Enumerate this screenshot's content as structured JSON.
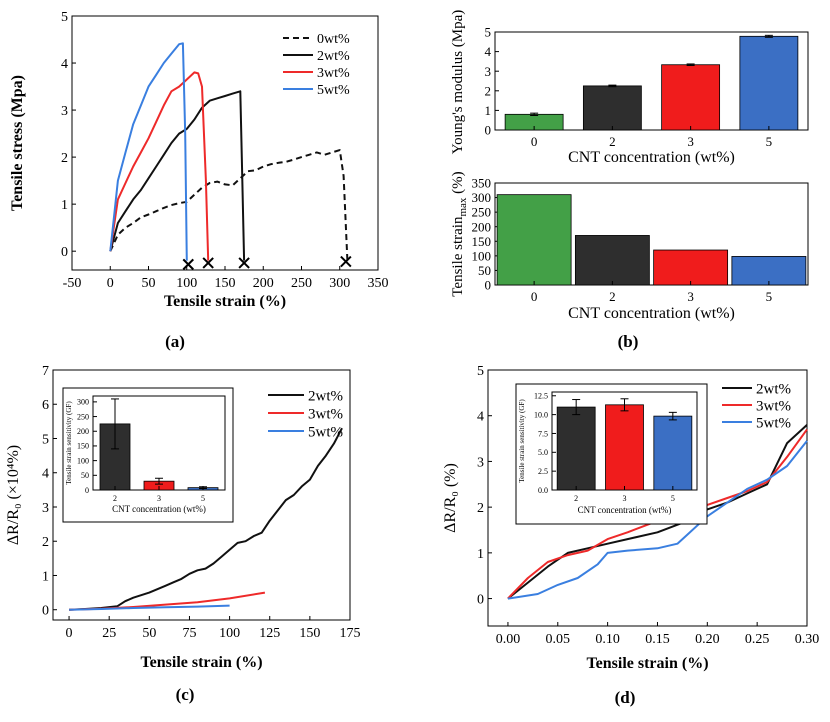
{
  "panels": [
    "(a)",
    "(b)",
    "(c)",
    "(d)"
  ],
  "colors": {
    "black": "#1a1a1a",
    "red": "#ee2a2a",
    "blue": "#3a7fe0",
    "green": "#43a047",
    "darkbar": "#2e2e2e",
    "redbar": "#f01c1c",
    "bluebar": "#3b6fc4"
  },
  "chart_data": [
    {
      "panel": "(a)",
      "type": "line",
      "xlabel": "Tensile strain (%)",
      "ylabel": "Tensile stress (Mpa)",
      "xlim": [
        -50,
        350
      ],
      "ylim": [
        -0.4,
        5
      ],
      "xticks": [
        -50,
        0,
        50,
        100,
        150,
        200,
        250,
        300,
        350
      ],
      "yticks": [
        0,
        1,
        2,
        3,
        4,
        5
      ],
      "legend": "top-right",
      "series": [
        {
          "name": "0wt%",
          "color": "#111111",
          "dash": "6,4",
          "x": [
            0,
            10,
            20,
            30,
            40,
            50,
            60,
            70,
            80,
            90,
            100,
            110,
            120,
            130,
            140,
            150,
            160,
            170,
            180,
            190,
            200,
            210,
            220,
            230,
            240,
            250,
            260,
            270,
            280,
            290,
            300,
            305,
            310
          ],
          "y": [
            0,
            0.35,
            0.5,
            0.6,
            0.72,
            0.78,
            0.85,
            0.92,
            0.98,
            1.02,
            1.05,
            1.2,
            1.35,
            1.45,
            1.48,
            1.42,
            1.4,
            1.55,
            1.7,
            1.72,
            1.8,
            1.85,
            1.88,
            1.9,
            1.95,
            2.0,
            2.05,
            2.1,
            2.05,
            2.1,
            2.15,
            1.6,
            -0.2
          ],
          "fracture": [
            308,
            -0.22
          ]
        },
        {
          "name": "2wt%",
          "color": "#111111",
          "dash": "",
          "x": [
            0,
            10,
            20,
            30,
            40,
            50,
            60,
            70,
            80,
            90,
            100,
            110,
            120,
            130,
            140,
            150,
            160,
            170,
            172,
            175
          ],
          "y": [
            0,
            0.6,
            0.85,
            1.1,
            1.3,
            1.55,
            1.8,
            2.05,
            2.3,
            2.5,
            2.6,
            2.8,
            3.05,
            3.2,
            3.25,
            3.3,
            3.35,
            3.4,
            2.0,
            -0.2
          ],
          "fracture": [
            175,
            -0.25
          ]
        },
        {
          "name": "3wt%",
          "color": "#ee2a2a",
          "dash": "",
          "x": [
            0,
            10,
            20,
            30,
            40,
            50,
            60,
            70,
            80,
            90,
            100,
            110,
            115,
            120,
            125,
            128
          ],
          "y": [
            0,
            1.1,
            1.45,
            1.8,
            2.1,
            2.4,
            2.75,
            3.1,
            3.4,
            3.5,
            3.65,
            3.8,
            3.78,
            3.5,
            1.5,
            -0.2
          ],
          "fracture": [
            128,
            -0.25
          ]
        },
        {
          "name": "5wt%",
          "color": "#3a7fe0",
          "dash": "",
          "x": [
            0,
            10,
            20,
            30,
            40,
            50,
            60,
            70,
            80,
            90,
            95,
            98,
            100
          ],
          "y": [
            0,
            1.5,
            2.1,
            2.7,
            3.1,
            3.5,
            3.75,
            4.0,
            4.2,
            4.4,
            4.42,
            2.5,
            -0.2
          ],
          "fracture": [
            102,
            -0.28
          ]
        }
      ]
    },
    {
      "panel": "(b) top",
      "type": "bar",
      "xlabel": "CNT concentration (wt%)",
      "ylabel": "Young's modulus (Mpa)",
      "ylim": [
        0,
        5
      ],
      "yticks": [
        0,
        1,
        2,
        3,
        4,
        5
      ],
      "categories": [
        "0",
        "2",
        "3",
        "5"
      ],
      "values": [
        0.8,
        2.25,
        3.33,
        4.78
      ],
      "errors": [
        0.06,
        0.04,
        0.04,
        0.05
      ],
      "colors": [
        "#43a047",
        "#2e2e2e",
        "#f01c1c",
        "#3b6fc4"
      ]
    },
    {
      "panel": "(b) bottom",
      "type": "bar",
      "xlabel": "CNT concentration (wt%)",
      "ylabel_main": "Tensile strain",
      "ylabel_sub": "max",
      "ylabel_unit": " (%)",
      "ylim": [
        0,
        350
      ],
      "yticks": [
        0,
        50,
        100,
        150,
        200,
        250,
        300,
        350
      ],
      "categories": [
        "0",
        "2",
        "3",
        "5"
      ],
      "values": [
        310,
        170,
        120,
        98
      ],
      "colors": [
        "#43a047",
        "#2e2e2e",
        "#f01c1c",
        "#3b6fc4"
      ]
    },
    {
      "panel": "(c)",
      "type": "line",
      "xlabel": "Tensile strain (%)",
      "ylabel": "ΔR/R₀ (×10⁴%)",
      "xlim": [
        -10,
        175
      ],
      "ylim": [
        -0.3,
        7
      ],
      "xticks": [
        0,
        25,
        50,
        75,
        100,
        125,
        150,
        175
      ],
      "yticks": [
        0,
        1,
        2,
        3,
        4,
        5,
        6,
        7
      ],
      "legend": "top-right",
      "series": [
        {
          "name": "2wt%",
          "color": "#111111",
          "x": [
            0,
            10,
            20,
            30,
            35,
            40,
            50,
            60,
            65,
            70,
            75,
            80,
            85,
            90,
            95,
            100,
            105,
            110,
            115,
            120,
            125,
            130,
            135,
            140,
            145,
            150,
            155,
            160,
            165,
            170
          ],
          "y": [
            0,
            0.02,
            0.05,
            0.1,
            0.25,
            0.35,
            0.5,
            0.7,
            0.8,
            0.9,
            1.05,
            1.15,
            1.2,
            1.35,
            1.55,
            1.75,
            1.95,
            2.0,
            2.15,
            2.25,
            2.6,
            2.9,
            3.2,
            3.35,
            3.6,
            3.8,
            4.2,
            4.5,
            4.85,
            5.3
          ]
        },
        {
          "name": "3wt%",
          "color": "#ee2a2a",
          "x": [
            0,
            20,
            40,
            60,
            80,
            100,
            122
          ],
          "y": [
            0,
            0.03,
            0.08,
            0.15,
            0.22,
            0.33,
            0.5
          ]
        },
        {
          "name": "5wt%",
          "color": "#3a7fe0",
          "x": [
            0,
            20,
            40,
            60,
            80,
            100
          ],
          "y": [
            0,
            0.02,
            0.05,
            0.07,
            0.09,
            0.12
          ]
        }
      ],
      "inset": {
        "type": "bar",
        "xlabel": "CNT concentration (wt%)",
        "ylabel": "Tensile strain sensitivity (GF)",
        "ylim": [
          0,
          320
        ],
        "yticks": [
          0,
          50,
          100,
          150,
          200,
          250,
          300
        ],
        "categories": [
          "2",
          "3",
          "5"
        ],
        "values": [
          225,
          30,
          8
        ],
        "errors": [
          85,
          10,
          3
        ],
        "colors": [
          "#2e2e2e",
          "#f01c1c",
          "#3b6fc4"
        ]
      }
    },
    {
      "panel": "(d)",
      "type": "line",
      "xlabel": "Tensile strain (%)",
      "ylabel": "ΔR/R₀ (%)",
      "xlim": [
        -0.02,
        0.3
      ],
      "ylim": [
        -0.6,
        5
      ],
      "xticks": [
        0.0,
        0.05,
        0.1,
        0.15,
        0.2,
        0.25,
        0.3
      ],
      "xtick_labels": [
        "0.00",
        "0.05",
        "0.10",
        "0.15",
        "0.20",
        "0.25",
        "0.30"
      ],
      "yticks": [
        0,
        1,
        2,
        3,
        4,
        5
      ],
      "legend": "top-right",
      "series": [
        {
          "name": "2wt%",
          "color": "#111111",
          "x": [
            0,
            0.02,
            0.04,
            0.05,
            0.06,
            0.08,
            0.1,
            0.12,
            0.15,
            0.18,
            0.2,
            0.22,
            0.24,
            0.26,
            0.28,
            0.3
          ],
          "y": [
            0,
            0.35,
            0.7,
            0.85,
            1.0,
            1.1,
            1.2,
            1.3,
            1.45,
            1.7,
            1.95,
            2.1,
            2.3,
            2.5,
            3.4,
            3.8
          ]
        },
        {
          "name": "3wt%",
          "color": "#ee2a2a",
          "x": [
            0,
            0.02,
            0.04,
            0.06,
            0.08,
            0.1,
            0.12,
            0.15,
            0.17,
            0.2,
            0.22,
            0.24,
            0.26,
            0.28,
            0.3
          ],
          "y": [
            0,
            0.45,
            0.8,
            0.95,
            1.05,
            1.3,
            1.45,
            1.7,
            1.85,
            2.05,
            2.2,
            2.35,
            2.55,
            3.1,
            3.7
          ]
        },
        {
          "name": "5wt%",
          "color": "#3a7fe0",
          "x": [
            0,
            0.03,
            0.05,
            0.07,
            0.09,
            0.1,
            0.12,
            0.15,
            0.17,
            0.18,
            0.2,
            0.22,
            0.24,
            0.26,
            0.28,
            0.3
          ],
          "y": [
            0,
            0.1,
            0.3,
            0.45,
            0.75,
            1.0,
            1.05,
            1.1,
            1.2,
            1.4,
            1.8,
            2.1,
            2.4,
            2.6,
            2.9,
            3.45
          ]
        }
      ],
      "inset": {
        "type": "bar",
        "xlabel": "CNT concentration (wt%)",
        "ylabel": "Tensile strain sensitivity (GF)",
        "ylim": [
          0,
          13
        ],
        "yticks": [
          0.0,
          2.5,
          5.0,
          7.5,
          10.0,
          12.5
        ],
        "ytick_labels": [
          "0.0",
          "2.5",
          "5.0",
          "7.5",
          "10.0",
          "12.5"
        ],
        "categories": [
          "2",
          "3",
          "5"
        ],
        "values": [
          11.0,
          11.3,
          9.8
        ],
        "errors": [
          1.0,
          0.8,
          0.5
        ],
        "colors": [
          "#2e2e2e",
          "#f01c1c",
          "#3b6fc4"
        ]
      }
    }
  ]
}
